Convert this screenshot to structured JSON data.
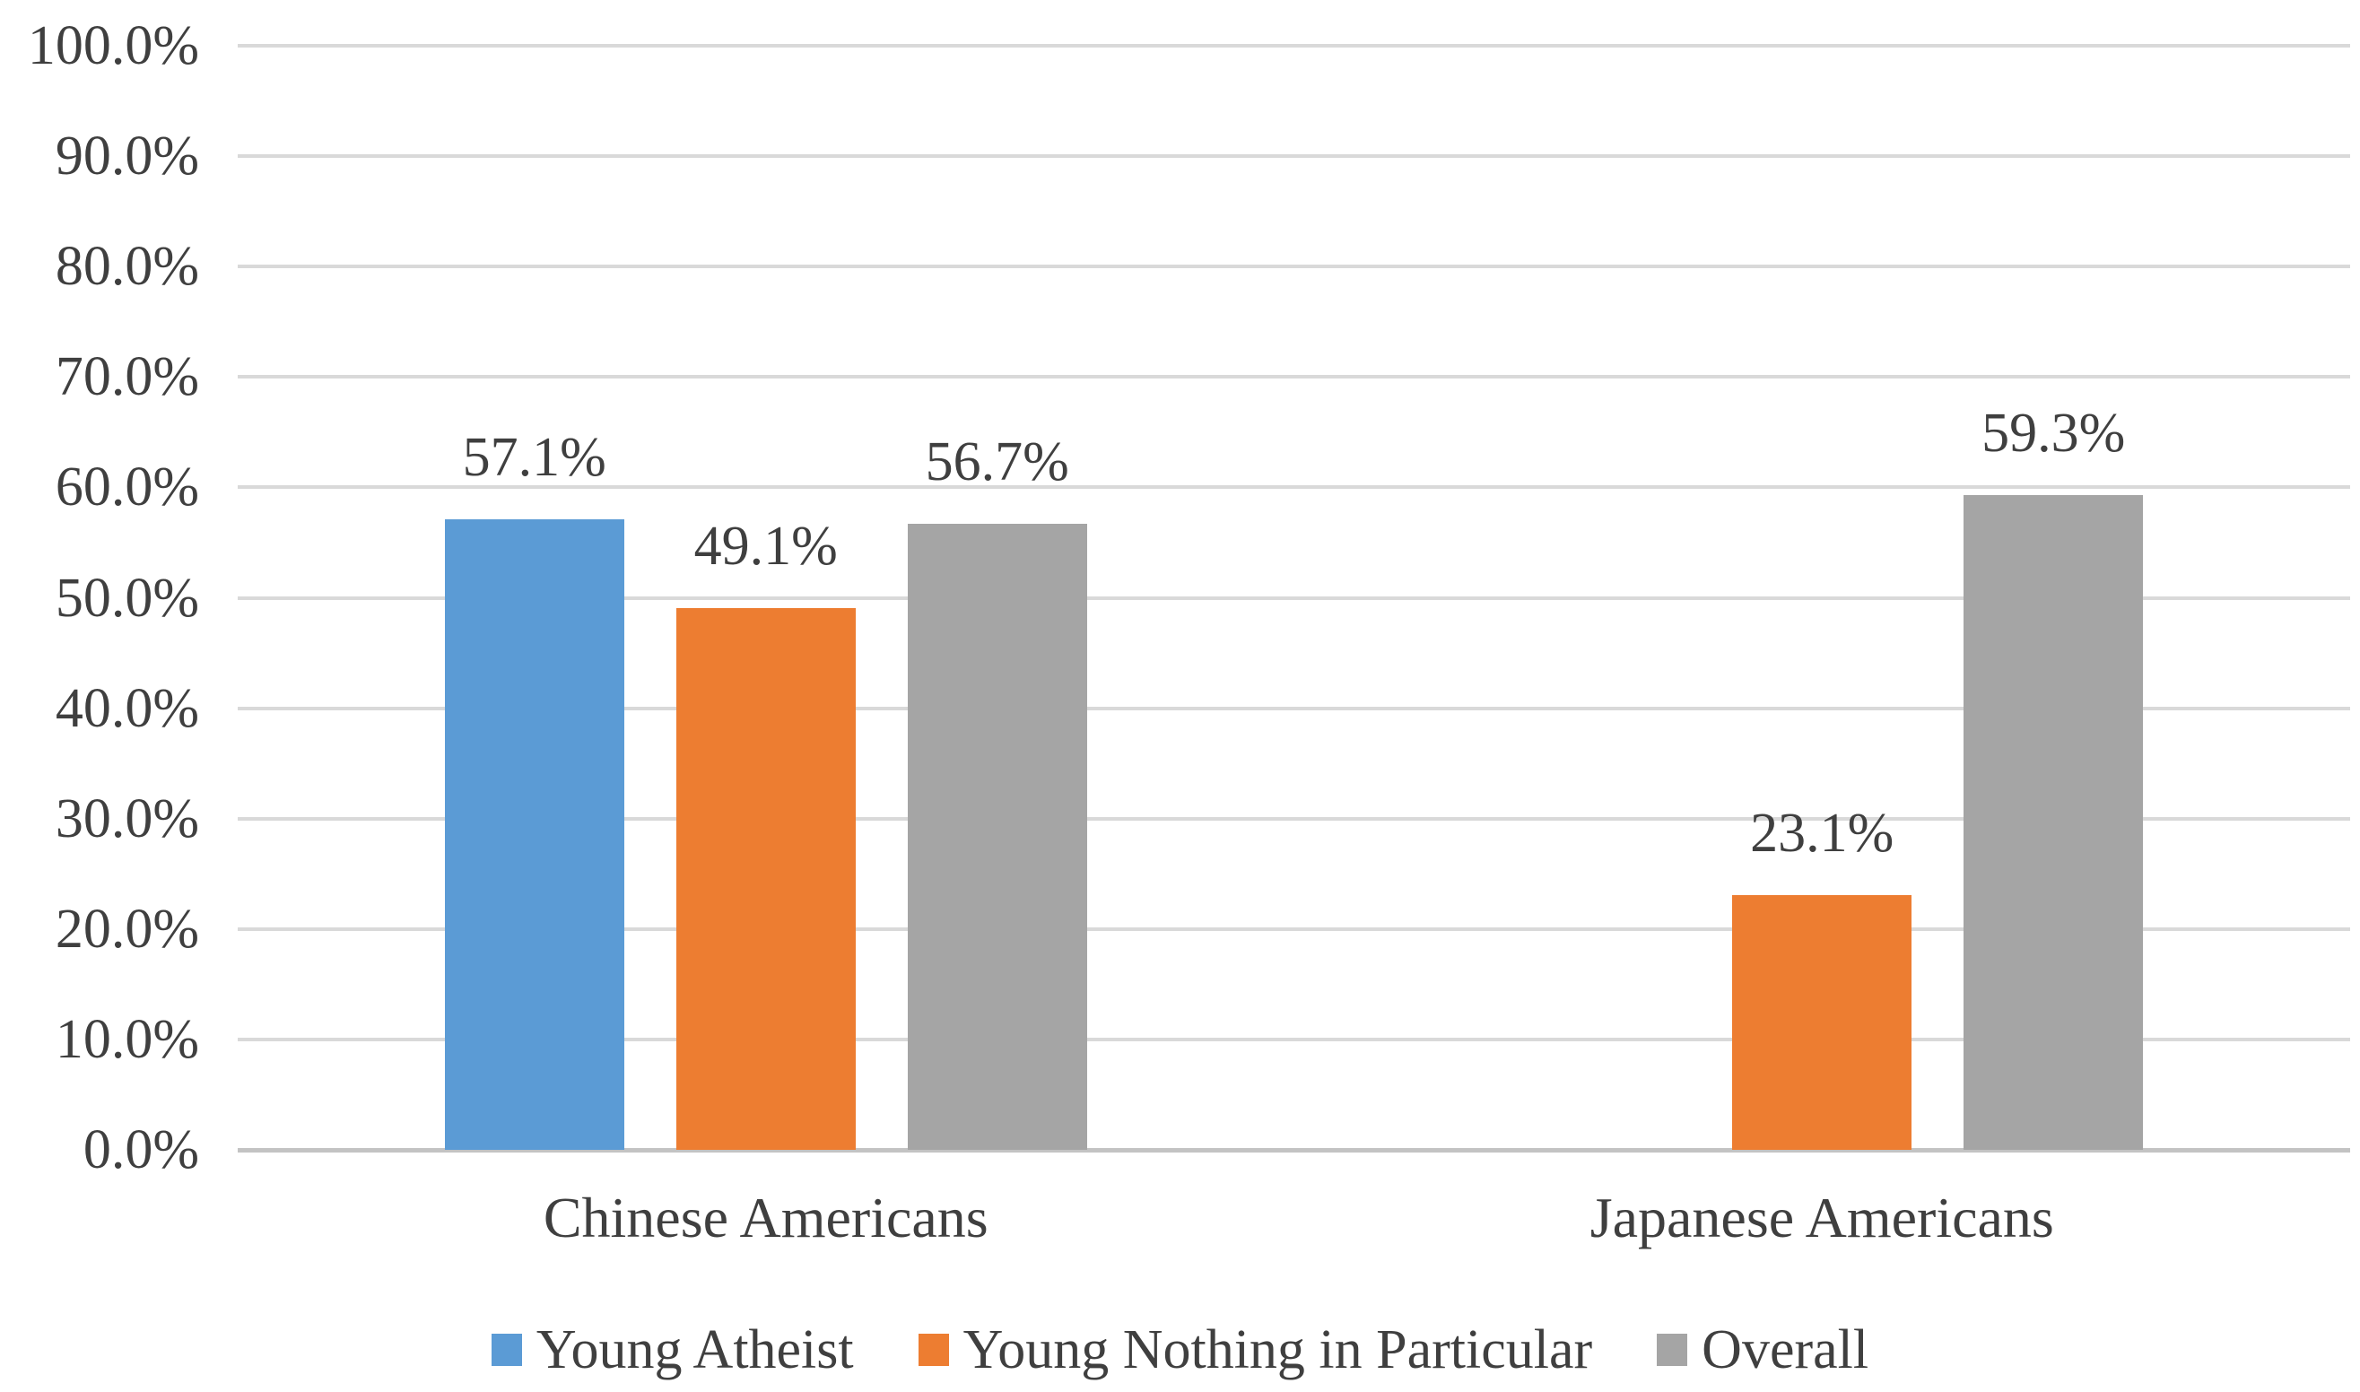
{
  "chart_data": {
    "type": "bar",
    "title": "",
    "categories": [
      "Chinese Americans",
      "Japanese Americans"
    ],
    "series": [
      {
        "name": "Young Atheist",
        "color": "#5B9BD5",
        "values": [
          57.1,
          null
        ],
        "data_labels": [
          "57.1%",
          ""
        ]
      },
      {
        "name": "Young Nothing in Particular",
        "color": "#ED7D31",
        "values": [
          49.1,
          23.1
        ],
        "data_labels": [
          "49.1%",
          "23.1%"
        ]
      },
      {
        "name": "Overall",
        "color": "#A5A5A5",
        "values": [
          56.7,
          59.3
        ],
        "data_labels": [
          "56.7%",
          "59.3%"
        ]
      }
    ],
    "xlabel": "",
    "ylabel": "",
    "ylim": [
      0,
      100
    ],
    "ytick_step": 10,
    "ytick_labels": [
      "0.0%",
      "10.0%",
      "20.0%",
      "30.0%",
      "40.0%",
      "50.0%",
      "60.0%",
      "70.0%",
      "80.0%",
      "90.0%",
      "100.0%"
    ],
    "grid": true,
    "legend_position": "bottom"
  },
  "colors": {
    "bar_blue": "#5B9BD5",
    "bar_orange": "#ED7D31",
    "bar_gray": "#A5A5A5",
    "gridline": "#D9D9D9",
    "axis_line": "#C3C3C3",
    "text": "#3F3F3F",
    "background": "#FFFFFF"
  }
}
